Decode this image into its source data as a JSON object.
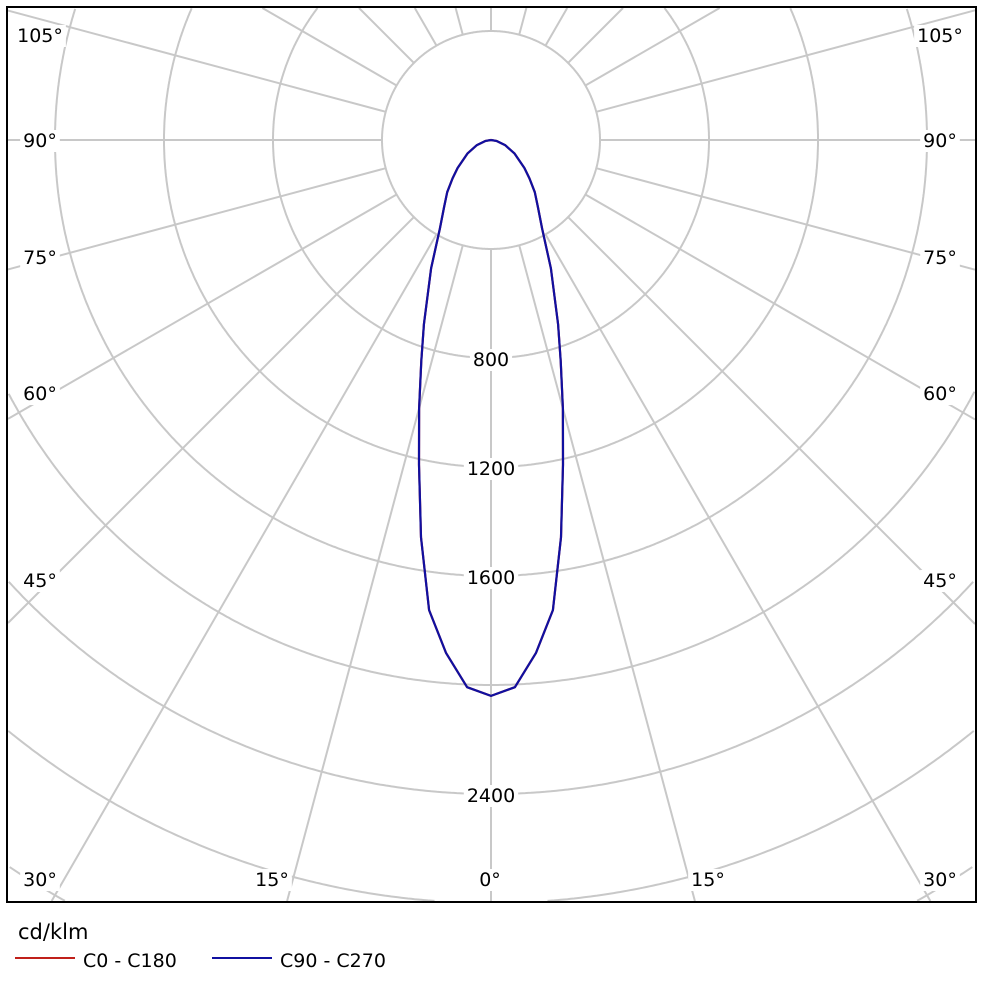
{
  "chart_data": {
    "type": "polar",
    "unit_label": "cd/klm",
    "radial_ticks": [
      400,
      800,
      1200,
      1600,
      2000,
      2400,
      2800,
      3200,
      3600
    ],
    "radial_tick_labels": [
      "800",
      "1200",
      "1600",
      "2400"
    ],
    "angle_step_deg": 15,
    "angle_labels": {
      "bottom": [
        "30°",
        "15°",
        "0°",
        "15°",
        "30°"
      ],
      "left": [
        "105°",
        "90°",
        "75°",
        "60°",
        "45°"
      ],
      "right": [
        "105°",
        "90°",
        "75°",
        "60°",
        "45°"
      ]
    },
    "grid": true,
    "legend_placement": "bottom-left",
    "series": [
      {
        "name": "C0 - C180",
        "color": "#c0201a",
        "angles_deg": [
          0,
          2.5,
          5,
          7.5,
          10,
          12.5,
          15,
          17.5,
          20,
          25,
          30,
          35,
          40,
          45,
          50,
          60,
          70,
          80,
          90
        ],
        "values": [
          2040,
          2010,
          1890,
          1740,
          1480,
          1220,
          1020,
          850,
          720,
          520,
          375,
          300,
          250,
          200,
          160,
          100,
          55,
          20,
          0
        ]
      },
      {
        "name": "C90 - C270",
        "color": "#1010a0",
        "angles_deg": [
          0,
          2.5,
          5,
          7.5,
          10,
          12.5,
          15,
          17.5,
          20,
          25,
          30,
          35,
          40,
          45,
          50,
          60,
          70,
          80,
          90
        ],
        "values": [
          2040,
          2010,
          1890,
          1740,
          1480,
          1220,
          1020,
          850,
          720,
          520,
          375,
          300,
          250,
          200,
          160,
          100,
          55,
          20,
          0
        ]
      }
    ]
  },
  "colors": {
    "grid": "#c8c8c8",
    "frame": "#000000"
  }
}
